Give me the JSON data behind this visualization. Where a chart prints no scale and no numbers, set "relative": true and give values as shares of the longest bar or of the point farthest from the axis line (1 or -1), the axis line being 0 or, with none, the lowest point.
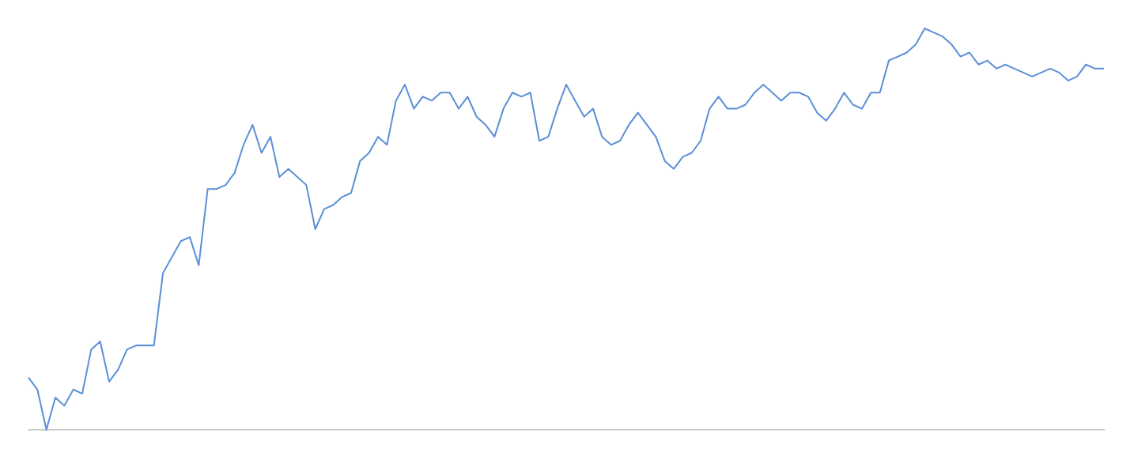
{
  "chart_data": {
    "type": "line",
    "relative": true,
    "marker": "none",
    "line_style": "solid",
    "categories": [
      null,
      null,
      null,
      null,
      null,
      null,
      null,
      null,
      null,
      null,
      null,
      null,
      null,
      null,
      null,
      null,
      null,
      null,
      null,
      null,
      null,
      null,
      null,
      null,
      null,
      null,
      null,
      null,
      null,
      null,
      null,
      null,
      null,
      null,
      null,
      null,
      null,
      null,
      null,
      null,
      null,
      null,
      null,
      null,
      null,
      null,
      null,
      null,
      null,
      null,
      null,
      null,
      null,
      null,
      null,
      null,
      null,
      null,
      null,
      null,
      null,
      null,
      null,
      null,
      null,
      null,
      null,
      null,
      null,
      null,
      null,
      null,
      null,
      null,
      null,
      null,
      null,
      null,
      null,
      null,
      null,
      null,
      null,
      null,
      null,
      null,
      null,
      null,
      null,
      null,
      null,
      null,
      null,
      null,
      null,
      null,
      null,
      null,
      null,
      null,
      null,
      null,
      null,
      null,
      null,
      null,
      null,
      null,
      null,
      null,
      null,
      null,
      null,
      null,
      null,
      null,
      null,
      null,
      null,
      null,
      null
    ],
    "series": [
      {
        "color": "#5b8fd6",
        "values": [
          0.13,
          0.1,
          0,
          0.08,
          0.06,
          0.1,
          0.09,
          0.2,
          0.22,
          0.12,
          0.15,
          0.2,
          0.21,
          0.21,
          0.21,
          0.39,
          0.43,
          0.47,
          0.48,
          0.41,
          0.6,
          0.6,
          0.61,
          0.64,
          0.71,
          0.76,
          0.69,
          0.73,
          0.63,
          0.65,
          0.63,
          0.61,
          0.5,
          0.55,
          0.56,
          0.58,
          0.59,
          0.67,
          0.69,
          0.73,
          0.71,
          0.82,
          0.86,
          0.8,
          0.83,
          0.82,
          0.84,
          0.84,
          0.8,
          0.83,
          0.78,
          0.76,
          0.73,
          0.8,
          0.84,
          0.83,
          0.84,
          0.72,
          0.73,
          0.8,
          0.86,
          0.82,
          0.78,
          0.8,
          0.73,
          0.71,
          0.72,
          0.76,
          0.79,
          0.76,
          0.73,
          0.67,
          0.65,
          0.68,
          0.69,
          0.72,
          0.8,
          0.83,
          0.8,
          0.8,
          0.81,
          0.84,
          0.86,
          0.84,
          0.82,
          0.84,
          0.84,
          0.83,
          0.79,
          0.77,
          0.8,
          0.84,
          0.81,
          0.8,
          0.84,
          0.84,
          0.92,
          0.93,
          0.94,
          0.96,
          1,
          0.99,
          0.98,
          0.96,
          0.93,
          0.94,
          0.91,
          0.92,
          0.9,
          0.91,
          0.9,
          0.89,
          0.88,
          0.89,
          0.9,
          0.89,
          0.87,
          0.88,
          0.91,
          0.9,
          0.9
        ]
      }
    ]
  }
}
